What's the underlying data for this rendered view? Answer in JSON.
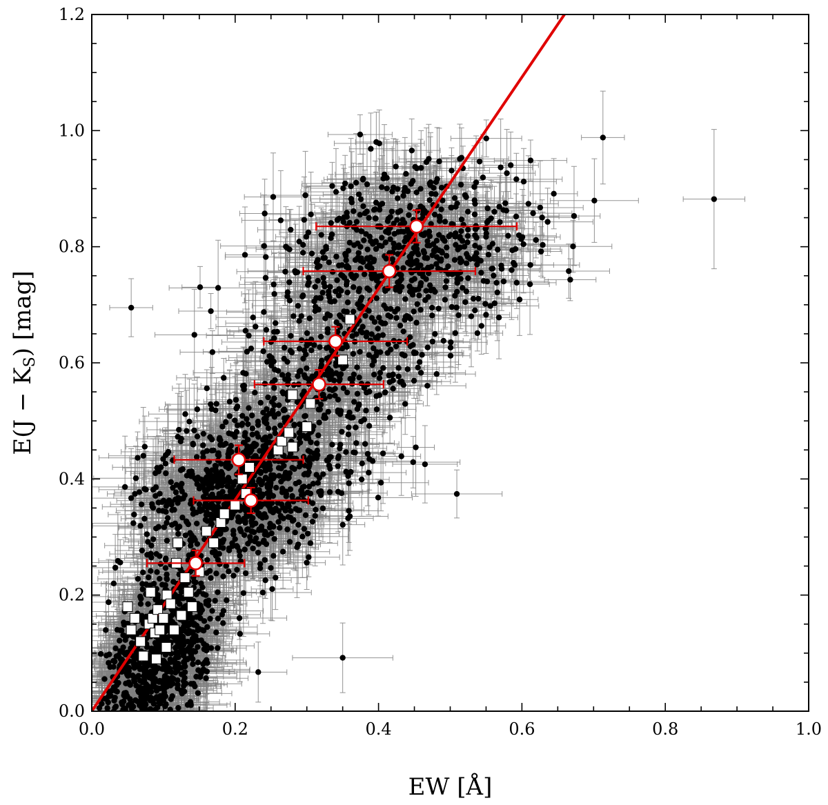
{
  "chart_data": {
    "type": "scatter",
    "title": "",
    "xlabel": "EW [Å]",
    "ylabel": "E(J − K_S) [mag]",
    "ylabel_main": "E(J − K",
    "ylabel_sub": "S",
    "ylabel_tail": ") [mag]",
    "xlim": [
      0.0,
      1.0
    ],
    "ylim": [
      0.0,
      1.2
    ],
    "x_ticks": [
      "0.0",
      "0.2",
      "0.4",
      "0.6",
      "0.8",
      "1.0"
    ],
    "y_ticks": [
      "0.0",
      "0.2",
      "0.4",
      "0.6",
      "0.8",
      "1.0",
      "1.2"
    ],
    "grid": false,
    "colors": {
      "points": "#000000",
      "errorbars": "#808080",
      "fit_line": "#e00000",
      "binned_edge": "#e00000",
      "binned_fill": "#ffffff",
      "squares": "#ffffff"
    },
    "fit_line": {
      "slope": 1.82,
      "intercept": 0.0
    },
    "binned_points": [
      {
        "x": 0.145,
        "y": 0.255,
        "xerr": 0.068,
        "yerr": 0.022
      },
      {
        "x": 0.222,
        "y": 0.363,
        "xerr": 0.08,
        "yerr": 0.022
      },
      {
        "x": 0.205,
        "y": 0.433,
        "xerr": 0.09,
        "yerr": 0.025
      },
      {
        "x": 0.317,
        "y": 0.563,
        "xerr": 0.09,
        "yerr": 0.025
      },
      {
        "x": 0.34,
        "y": 0.637,
        "xerr": 0.1,
        "yerr": 0.025
      },
      {
        "x": 0.415,
        "y": 0.758,
        "xerr": 0.12,
        "yerr": 0.028
      },
      {
        "x": 0.453,
        "y": 0.835,
        "xerr": 0.14,
        "yerr": 0.028
      }
    ],
    "squares": [
      {
        "x": 0.05,
        "y": 0.18
      },
      {
        "x": 0.055,
        "y": 0.14
      },
      {
        "x": 0.06,
        "y": 0.16
      },
      {
        "x": 0.068,
        "y": 0.12
      },
      {
        "x": 0.072,
        "y": 0.095
      },
      {
        "x": 0.08,
        "y": 0.15
      },
      {
        "x": 0.082,
        "y": 0.205
      },
      {
        "x": 0.085,
        "y": 0.16
      },
      {
        "x": 0.088,
        "y": 0.135
      },
      {
        "x": 0.09,
        "y": 0.09
      },
      {
        "x": 0.092,
        "y": 0.175
      },
      {
        "x": 0.095,
        "y": 0.14
      },
      {
        "x": 0.1,
        "y": 0.16
      },
      {
        "x": 0.104,
        "y": 0.11
      },
      {
        "x": 0.105,
        "y": 0.2
      },
      {
        "x": 0.11,
        "y": 0.185
      },
      {
        "x": 0.115,
        "y": 0.14
      },
      {
        "x": 0.118,
        "y": 0.255
      },
      {
        "x": 0.12,
        "y": 0.29
      },
      {
        "x": 0.125,
        "y": 0.165
      },
      {
        "x": 0.13,
        "y": 0.23
      },
      {
        "x": 0.135,
        "y": 0.205
      },
      {
        "x": 0.14,
        "y": 0.18
      },
      {
        "x": 0.15,
        "y": 0.24
      },
      {
        "x": 0.16,
        "y": 0.31
      },
      {
        "x": 0.17,
        "y": 0.29
      },
      {
        "x": 0.18,
        "y": 0.325
      },
      {
        "x": 0.185,
        "y": 0.34
      },
      {
        "x": 0.2,
        "y": 0.355
      },
      {
        "x": 0.21,
        "y": 0.4
      },
      {
        "x": 0.215,
        "y": 0.375
      },
      {
        "x": 0.22,
        "y": 0.42
      },
      {
        "x": 0.26,
        "y": 0.45
      },
      {
        "x": 0.265,
        "y": 0.465
      },
      {
        "x": 0.275,
        "y": 0.48
      },
      {
        "x": 0.28,
        "y": 0.455
      },
      {
        "x": 0.28,
        "y": 0.545
      },
      {
        "x": 0.3,
        "y": 0.49
      },
      {
        "x": 0.305,
        "y": 0.53
      },
      {
        "x": 0.35,
        "y": 0.605
      },
      {
        "x": 0.36,
        "y": 0.675
      }
    ],
    "scatter_note_count": 2600
  }
}
